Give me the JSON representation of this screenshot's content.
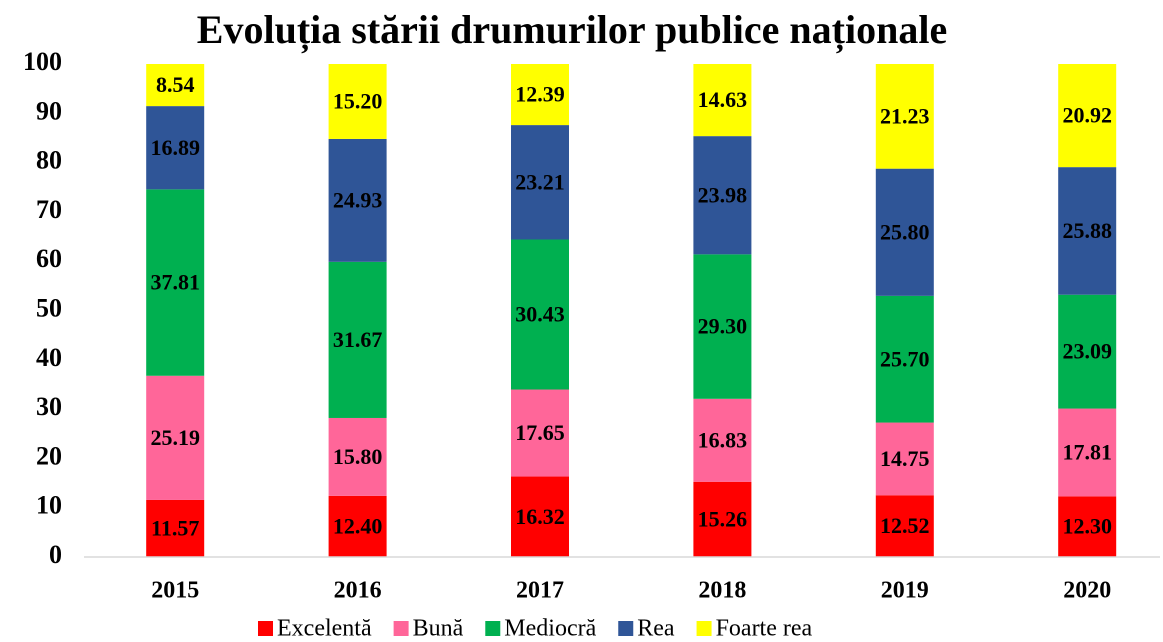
{
  "chart_data": {
    "type": "stacked_bar",
    "title": "Evoluția stării drumurilor publice naționale",
    "categories": [
      "2015",
      "2016",
      "2017",
      "2018",
      "2019",
      "2020"
    ],
    "series": [
      {
        "name": "Excelentă",
        "color": "#ff0000",
        "values": [
          11.57,
          12.4,
          16.32,
          15.26,
          12.52,
          12.3
        ],
        "value_labels": [
          "11.57",
          "12.40",
          "16.32",
          "15.26",
          "12.52",
          "12.30"
        ]
      },
      {
        "name": "Bună",
        "color": "#ff6699",
        "values": [
          25.19,
          15.8,
          17.65,
          16.83,
          14.75,
          17.81
        ],
        "value_labels": [
          "25.19",
          "15.80",
          "17.65",
          "16.83",
          "14.75",
          "17.81"
        ]
      },
      {
        "name": "Mediocră",
        "color": "#00b050",
        "values": [
          37.81,
          31.67,
          30.43,
          29.3,
          25.7,
          23.09
        ],
        "value_labels": [
          "37.81",
          "31.67",
          "30.43",
          "29.30",
          "25.70",
          "23.09"
        ]
      },
      {
        "name": "Rea",
        "color": "#2f5597",
        "values": [
          16.89,
          24.93,
          23.21,
          23.98,
          25.8,
          25.88
        ],
        "value_labels": [
          "16.89",
          "24.93",
          "23.21",
          "23.98",
          "25.80",
          "25.88"
        ]
      },
      {
        "name": "Foarte rea",
        "color": "#ffff00",
        "values": [
          8.54,
          15.2,
          12.39,
          14.63,
          21.23,
          20.92
        ],
        "value_labels": [
          "8.54",
          "15.20",
          "12.39",
          "14.63",
          "21.23",
          "20.92"
        ]
      }
    ],
    "ylim": [
      0,
      100
    ],
    "yticks": [
      0,
      10,
      20,
      30,
      40,
      50,
      60,
      70,
      80,
      90,
      100
    ],
    "grid": false,
    "legend": "bottom"
  }
}
